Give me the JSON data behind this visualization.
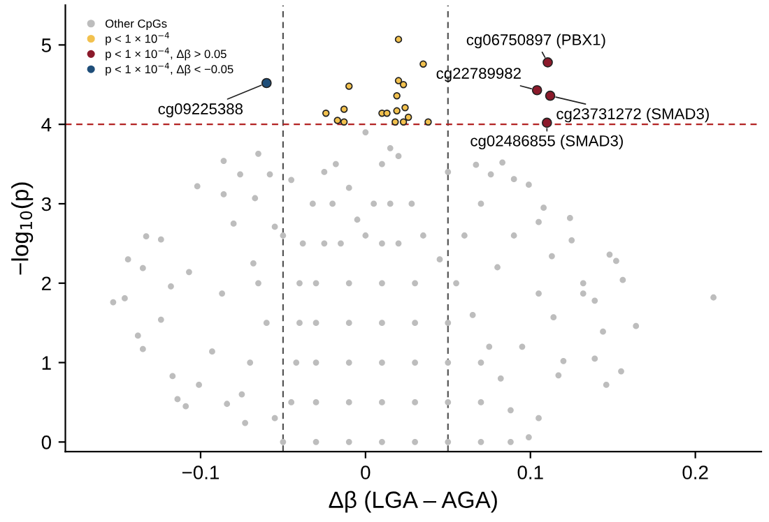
{
  "chart_data": {
    "type": "scatter",
    "xlabel": "Δβ (LGA – AGA)",
    "ylabel": "−log$_{10}$(p)",
    "xlim": [
      -0.182,
      0.24
    ],
    "ylim": [
      -0.12,
      5.5
    ],
    "xticks": [
      {
        "value": -0.1,
        "label": "−0.1"
      },
      0,
      0.1,
      0.2
    ],
    "yticks": [
      0,
      1,
      2,
      3,
      4,
      5
    ],
    "grid": false,
    "legend": "top left",
    "marker": "circle",
    "series": [
      {
        "name": "Other CpGs",
        "color": "#bdbdbd",
        "x": [
          -0.153,
          -0.146,
          -0.144,
          -0.135,
          -0.135,
          -0.138,
          -0.133,
          -0.124,
          -0.124,
          -0.118,
          -0.117,
          -0.114,
          -0.109,
          -0.107,
          -0.102,
          -0.101,
          -0.086,
          -0.086,
          -0.076,
          -0.08,
          -0.065,
          -0.068,
          -0.087,
          -0.093,
          -0.084,
          -0.073,
          -0.067,
          -0.058,
          -0.055,
          0.211,
          0.164,
          0.156,
          0.152,
          0.148,
          0.155,
          0.146,
          0.139,
          0.139,
          0.144,
          0.132,
          0.132,
          0.124,
          0.125,
          0.113,
          0.099,
          0.108,
          0.105,
          0.09,
          0.083,
          0.076,
          0.067,
          0.105,
          0.114,
          0.12,
          0.117,
          0.105,
          0.099,
          -0.05,
          -0.03,
          -0.01,
          0.01,
          0.03,
          0.05,
          0.07,
          0.088,
          -0.045,
          -0.042,
          -0.04,
          -0.04,
          -0.038,
          -0.032,
          -0.025,
          -0.018,
          -0.01,
          -0.005,
          0.0,
          0.005,
          0.01,
          0.015,
          0.02,
          0.028,
          0.035,
          0.045,
          0.055,
          0.065,
          0.075,
          0.082,
          0.088,
          -0.03,
          -0.01,
          0.01,
          0.03,
          0.05,
          0.07,
          -0.03,
          -0.01,
          0.01,
          0.03,
          0.05,
          0.07,
          -0.03,
          -0.01,
          0.01,
          0.03,
          0.05,
          -0.03,
          -0.01,
          0.01,
          0.03,
          -0.025,
          -0.015,
          0.01,
          0.02,
          -0.02,
          0.015,
          -0.06,
          -0.07,
          -0.075,
          -0.055,
          -0.065,
          0.06,
          0.07,
          0.08,
          0.095,
          0.09,
          0.05,
          -0.045,
          -0.05,
          0.0
        ],
        "values": [
          1.76,
          1.81,
          2.3,
          2.19,
          1.17,
          1.34,
          2.59,
          2.55,
          1.54,
          1.96,
          0.83,
          0.54,
          0.45,
          2.14,
          3.22,
          0.72,
          3.54,
          3.12,
          3.37,
          2.75,
          3.63,
          2.25,
          1.87,
          1.14,
          0.48,
          0.24,
          3.07,
          3.37,
          2.71,
          1.82,
          1.46,
          2.04,
          2.28,
          2.36,
          0.89,
          0.72,
          1.05,
          1.78,
          1.39,
          1.87,
          2.0,
          2.82,
          2.54,
          2.34,
          3.24,
          2.95,
          2.77,
          3.31,
          3.52,
          3.37,
          3.49,
          1.87,
          1.57,
          1.02,
          0.84,
          0.3,
          0.06,
          0.0,
          0.0,
          0.0,
          0.0,
          0.0,
          0.0,
          0.0,
          0.0,
          0.5,
          1.0,
          1.5,
          2.0,
          2.5,
          3.0,
          3.4,
          3.5,
          3.2,
          2.8,
          2.6,
          3.0,
          3.5,
          3.7,
          3.6,
          3.0,
          2.6,
          2.3,
          2.0,
          1.6,
          1.2,
          0.8,
          0.4,
          0.5,
          0.5,
          0.5,
          0.5,
          0.5,
          0.5,
          1.0,
          1.0,
          1.0,
          1.0,
          1.0,
          1.0,
          1.5,
          1.5,
          1.5,
          1.5,
          1.5,
          2.0,
          2.0,
          2.0,
          2.0,
          2.5,
          2.5,
          2.5,
          2.5,
          3.0,
          3.0,
          1.5,
          1.0,
          0.6,
          0.3,
          2.0,
          2.6,
          3.0,
          2.2,
          1.2,
          2.6,
          3.4,
          3.3,
          2.6,
          3.9
        ]
      },
      {
        "name": "p < 1 × 10$^{−4}$",
        "color": "#f2c14e",
        "x": [
          0.02,
          0.035,
          -0.01,
          0.02,
          0.023,
          0.019,
          -0.013,
          -0.024,
          0.01,
          0.013,
          0.019,
          0.024,
          -0.017,
          -0.013,
          0.018,
          0.023,
          0.026,
          0.038
        ],
        "values": [
          5.07,
          4.76,
          4.48,
          4.55,
          4.5,
          4.36,
          4.19,
          4.14,
          4.14,
          4.14,
          4.17,
          4.21,
          4.05,
          4.03,
          4.03,
          4.03,
          4.09,
          4.03
        ]
      },
      {
        "name": "p < 1 × 10$^{−4}$, Δβ > 0.05",
        "color": "#8b1a2b",
        "x": [
          0.1105,
          0.104,
          0.112,
          0.11
        ],
        "values": [
          4.78,
          4.43,
          4.36,
          4.02
        ]
      },
      {
        "name": "p < 1 × 10$^{−4}$, Δβ < −0.05",
        "color": "#1f4e79",
        "x": [
          -0.06
        ],
        "values": [
          4.52
        ]
      }
    ],
    "ref_lines": [
      {
        "axis": "x",
        "value": -0.05,
        "color": "#555555",
        "line_style": "dashed"
      },
      {
        "axis": "x",
        "value": 0.05,
        "color": "#555555",
        "line_style": "dashed"
      },
      {
        "axis": "y",
        "value": 4,
        "color": "#b22222",
        "line_style": "dashed"
      }
    ],
    "annotations": [
      {
        "text": "cg09225388",
        "x": -0.06,
        "y": 4.52
      },
      {
        "text": "cg06750897 (PBX1)",
        "x": 0.1105,
        "y": 4.78
      },
      {
        "text": "cg22789982",
        "x": 0.104,
        "y": 4.43
      },
      {
        "text": "cg23731272 (SMAD3)",
        "x": 0.112,
        "y": 4.36
      },
      {
        "text": "cg02486855 (SMAD3)",
        "x": 0.11,
        "y": 4.02
      }
    ]
  }
}
